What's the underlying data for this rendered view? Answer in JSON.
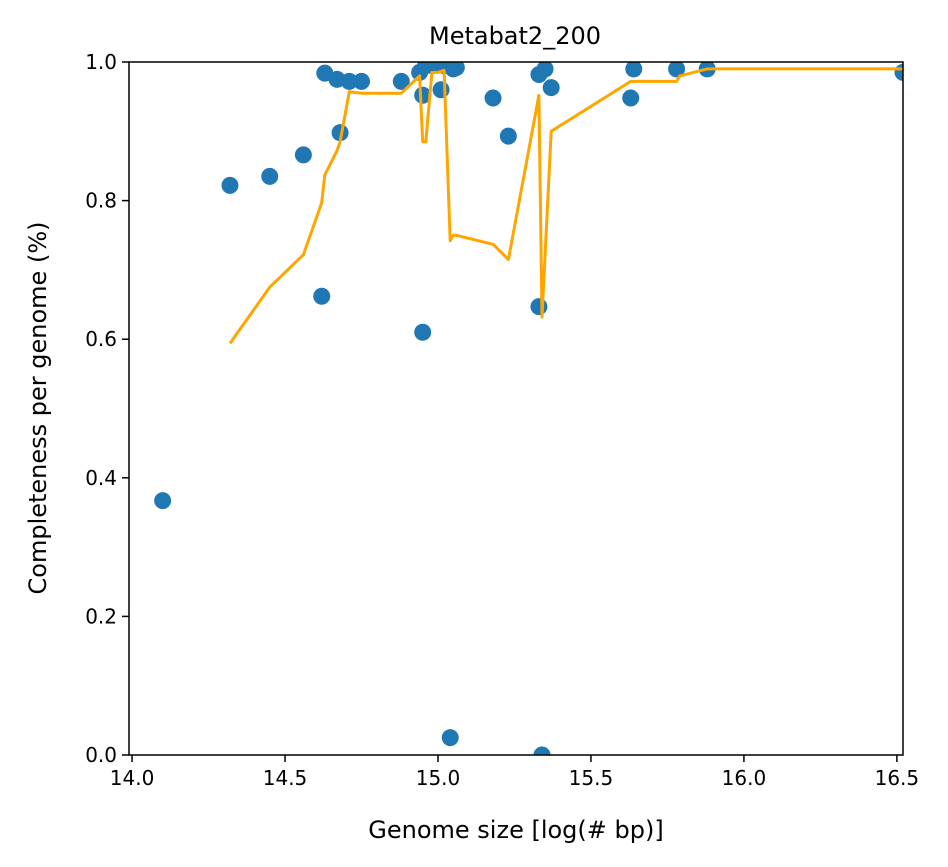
{
  "chart_data": {
    "type": "scatter",
    "title": "Metabat2_200",
    "xlabel": "Genome size [log(# bp)]",
    "ylabel": "Completeness per genome (%)",
    "xlim": [
      13.99,
      16.52
    ],
    "ylim": [
      0.0,
      1.0
    ],
    "xticks": [
      14.0,
      14.5,
      15.0,
      15.5,
      16.0,
      16.5
    ],
    "xtick_labels": [
      "14.0",
      "14.5",
      "15.0",
      "15.5",
      "16.0",
      "16.5"
    ],
    "yticks": [
      0.0,
      0.2,
      0.4,
      0.6,
      0.8,
      1.0
    ],
    "ytick_labels": [
      "0.0",
      "0.2",
      "0.4",
      "0.6",
      "0.8",
      "1.0"
    ],
    "grid": false,
    "colors": {
      "points": "#1f77b4",
      "line": "#ffa500"
    },
    "series": [
      {
        "kind": "scatter",
        "x": [
          14.1,
          14.32,
          14.45,
          14.56,
          14.62,
          14.63,
          14.67,
          14.68,
          14.71,
          14.75,
          14.88,
          14.94,
          14.95,
          14.95,
          14.96,
          14.98,
          15.0,
          15.01,
          15.02,
          15.04,
          15.05,
          15.06,
          15.18,
          15.23,
          15.33,
          15.33,
          15.34,
          15.35,
          15.37,
          15.63,
          15.64,
          15.78,
          15.88,
          16.52
        ],
        "y": [
          0.367,
          0.822,
          0.835,
          0.866,
          0.662,
          0.984,
          0.975,
          0.898,
          0.972,
          0.972,
          0.972,
          0.985,
          0.61,
          0.952,
          0.995,
          0.995,
          0.998,
          0.96,
          0.995,
          0.025,
          0.99,
          0.992,
          0.948,
          0.893,
          0.647,
          0.982,
          0.0,
          0.99,
          0.963,
          0.948,
          0.99,
          0.99,
          0.99,
          0.985
        ]
      },
      {
        "kind": "line",
        "x": [
          14.32,
          14.45,
          14.56,
          14.62,
          14.63,
          14.67,
          14.68,
          14.71,
          14.75,
          14.88,
          14.94,
          14.95,
          14.96,
          14.98,
          15.0,
          15.02,
          15.04,
          15.05,
          15.06,
          15.18,
          15.23,
          15.33,
          15.34,
          15.37,
          15.63,
          15.78,
          15.79,
          15.88,
          16.52
        ],
        "y": [
          0.594,
          0.675,
          0.722,
          0.797,
          0.837,
          0.872,
          0.885,
          0.957,
          0.955,
          0.955,
          0.98,
          0.885,
          0.885,
          0.985,
          0.985,
          0.988,
          0.742,
          0.75,
          0.75,
          0.737,
          0.715,
          0.952,
          0.632,
          0.9,
          0.972,
          0.972,
          0.98,
          0.99,
          0.99
        ]
      }
    ]
  }
}
